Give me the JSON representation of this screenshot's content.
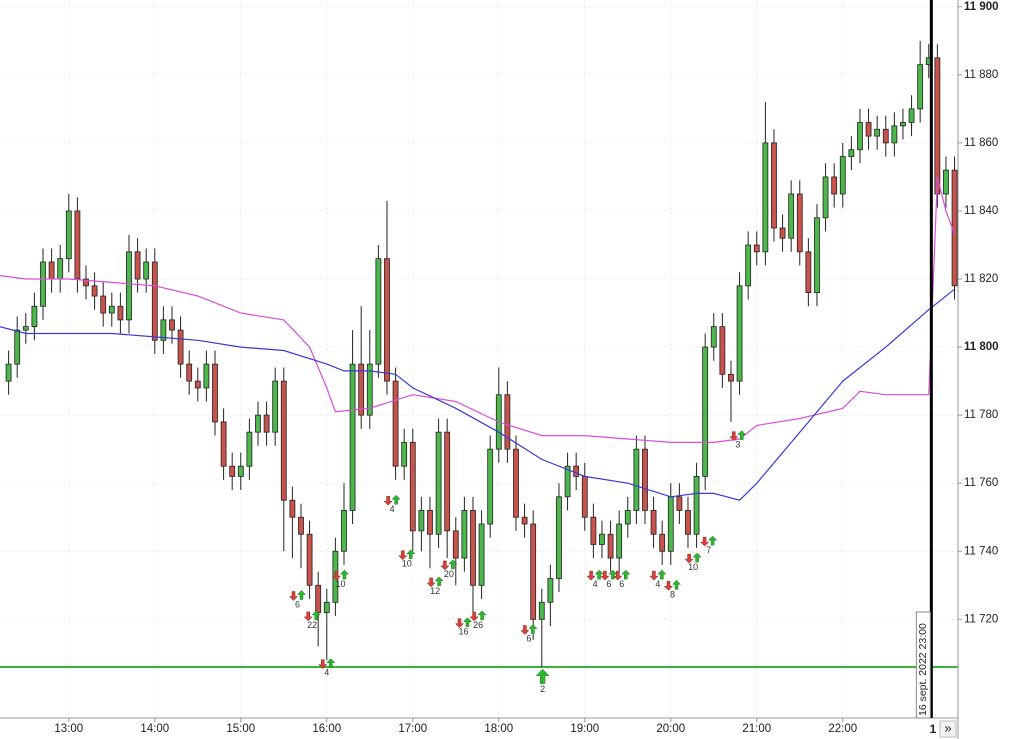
{
  "chart_data": {
    "type": "candlestick",
    "xlim": [
      12.2,
      23.34
    ],
    "ylim": [
      11691,
      11902
    ],
    "xticks": [
      {
        "value": 13,
        "label": "13:00"
      },
      {
        "value": 14,
        "label": "14:00"
      },
      {
        "value": 15,
        "label": "15:00"
      },
      {
        "value": 16,
        "label": "16:00"
      },
      {
        "value": 17,
        "label": "17:00"
      },
      {
        "value": 18,
        "label": "18:00"
      },
      {
        "value": 19,
        "label": "19:00"
      },
      {
        "value": 20,
        "label": "20:00"
      },
      {
        "value": 21,
        "label": "21:00"
      },
      {
        "value": 22,
        "label": "22:00"
      }
    ],
    "yticks": [
      {
        "value": 11720,
        "label": "11 720"
      },
      {
        "value": 11740,
        "label": "11 740"
      },
      {
        "value": 11760,
        "label": "11 760"
      },
      {
        "value": 11780,
        "label": "11 780"
      },
      {
        "value": 11800,
        "label": "11 800"
      },
      {
        "value": 11820,
        "label": "11 820"
      },
      {
        "value": 11840,
        "label": "11 840"
      },
      {
        "value": 11860,
        "label": "11 860"
      },
      {
        "value": 11880,
        "label": "11 880"
      },
      {
        "value": 11900,
        "label": "11 900"
      }
    ],
    "grid": true,
    "up_color": "#4cb84c",
    "down_color": "#c8524c",
    "x": [
      12.3,
      12.4,
      12.5,
      12.6,
      12.7,
      12.8,
      12.9,
      13.0,
      13.1,
      13.2,
      13.3,
      13.4,
      13.5,
      13.6,
      13.7,
      13.8,
      13.9,
      14.0,
      14.1,
      14.2,
      14.3,
      14.4,
      14.5,
      14.6,
      14.7,
      14.8,
      14.9,
      15.0,
      15.1,
      15.2,
      15.3,
      15.4,
      15.5,
      15.6,
      15.7,
      15.8,
      15.9,
      16.0,
      16.1,
      16.2,
      16.3,
      16.4,
      16.5,
      16.6,
      16.7,
      16.8,
      16.9,
      17.0,
      17.1,
      17.2,
      17.3,
      17.4,
      17.5,
      17.6,
      17.7,
      17.8,
      17.9,
      18.0,
      18.1,
      18.2,
      18.3,
      18.4,
      18.5,
      18.6,
      18.7,
      18.8,
      18.9,
      19.0,
      19.1,
      19.2,
      19.3,
      19.4,
      19.5,
      19.6,
      19.7,
      19.8,
      19.9,
      20.0,
      20.1,
      20.2,
      20.3,
      20.4,
      20.5,
      20.6,
      20.7,
      20.8,
      20.9,
      21.0,
      21.1,
      21.2,
      21.3,
      21.4,
      21.5,
      21.6,
      21.7,
      21.8,
      21.9,
      22.0,
      22.1,
      22.2,
      22.3,
      22.4,
      22.5,
      22.6,
      22.7,
      22.8,
      22.9,
      23.0,
      23.1,
      23.2,
      23.3
    ],
    "open": [
      11790,
      11795,
      11805,
      11806,
      11812,
      11825,
      11820,
      11826,
      11840,
      11820,
      11818,
      11815,
      11810,
      11812,
      11808,
      11828,
      11820,
      11825,
      11802,
      11808,
      11805,
      11795,
      11790,
      11788,
      11795,
      11778,
      11765,
      11762,
      11765,
      11775,
      11780,
      11775,
      11790,
      11755,
      11750,
      11745,
      11730,
      11722,
      11725,
      11740,
      11752,
      11795,
      11780,
      11795,
      11826,
      11790,
      11765,
      11772,
      11746,
      11752,
      11745,
      11775,
      11746,
      11738,
      11752,
      11730,
      11748,
      11770,
      11786,
      11770,
      11750,
      11748,
      11720,
      11725,
      11732,
      11756,
      11765,
      11762,
      11750,
      11742,
      11745,
      11738,
      11748,
      11752,
      11770,
      11752,
      11745,
      11740,
      11756,
      11752,
      11745,
      11762,
      11800,
      11806,
      11792,
      11790,
      11818,
      11830,
      11828,
      11860,
      11835,
      11832,
      11845,
      11828,
      11816,
      11838,
      11850,
      11845,
      11856,
      11858,
      11866,
      11862,
      11864,
      11860,
      11865,
      11866,
      11870,
      11883,
      11885,
      11845,
      11852
    ],
    "high": [
      11799,
      11809,
      11810,
      11816,
      11829,
      11829,
      11830,
      11845,
      11844,
      11824,
      11822,
      11819,
      11816,
      11816,
      11833,
      11832,
      11829,
      11829,
      11812,
      11812,
      11809,
      11799,
      11794,
      11799,
      11799,
      11782,
      11769,
      11769,
      11779,
      11784,
      11784,
      11794,
      11794,
      11759,
      11754,
      11749,
      11734,
      11729,
      11744,
      11760,
      11805,
      11812,
      11805,
      11830,
      11843,
      11794,
      11776,
      11776,
      11756,
      11756,
      11779,
      11779,
      11750,
      11756,
      11756,
      11752,
      11774,
      11794,
      11790,
      11774,
      11754,
      11752,
      11729,
      11736,
      11760,
      11769,
      11769,
      11766,
      11754,
      11749,
      11749,
      11752,
      11756,
      11774,
      11774,
      11756,
      11749,
      11760,
      11760,
      11756,
      11766,
      11804,
      11810,
      11810,
      11796,
      11822,
      11834,
      11834,
      11872,
      11864,
      11839,
      11849,
      11849,
      11832,
      11842,
      11854,
      11854,
      11860,
      11862,
      11870,
      11870,
      11868,
      11868,
      11869,
      11870,
      11874,
      11890,
      11889,
      11889,
      11856,
      11856
    ],
    "low": [
      11786,
      11791,
      11801,
      11802,
      11808,
      11816,
      11816,
      11822,
      11816,
      11814,
      11811,
      11806,
      11806,
      11804,
      11804,
      11816,
      11816,
      11798,
      11798,
      11801,
      11791,
      11786,
      11784,
      11784,
      11774,
      11761,
      11758,
      11758,
      11761,
      11771,
      11771,
      11771,
      11740,
      11738,
      11735,
      11726,
      11712,
      11708,
      11721,
      11736,
      11748,
      11776,
      11776,
      11791,
      11786,
      11761,
      11761,
      11740,
      11740,
      11735,
      11741,
      11738,
      11730,
      11734,
      11722,
      11726,
      11744,
      11766,
      11766,
      11746,
      11744,
      11714,
      11706,
      11718,
      11728,
      11752,
      11758,
      11746,
      11738,
      11738,
      11734,
      11734,
      11744,
      11748,
      11748,
      11741,
      11736,
      11736,
      11748,
      11741,
      11741,
      11758,
      11796,
      11788,
      11778,
      11786,
      11814,
      11824,
      11824,
      11831,
      11828,
      11828,
      11824,
      11812,
      11812,
      11834,
      11841,
      11841,
      11852,
      11854,
      11858,
      11858,
      11856,
      11856,
      11861,
      11862,
      11866,
      11879,
      11841,
      11841,
      11814
    ],
    "close": [
      11795,
      11805,
      11806,
      11812,
      11825,
      11820,
      11826,
      11840,
      11820,
      11818,
      11815,
      11810,
      11812,
      11808,
      11828,
      11820,
      11825,
      11802,
      11808,
      11805,
      11795,
      11790,
      11788,
      11795,
      11778,
      11765,
      11762,
      11765,
      11775,
      11780,
      11775,
      11790,
      11755,
      11750,
      11745,
      11730,
      11722,
      11725,
      11740,
      11752,
      11795,
      11780,
      11795,
      11826,
      11790,
      11765,
      11772,
      11746,
      11752,
      11745,
      11775,
      11746,
      11738,
      11752,
      11730,
      11748,
      11770,
      11786,
      11770,
      11750,
      11748,
      11720,
      11725,
      11732,
      11756,
      11765,
      11762,
      11750,
      11742,
      11745,
      11738,
      11748,
      11752,
      11770,
      11752,
      11745,
      11740,
      11756,
      11752,
      11745,
      11762,
      11800,
      11806,
      11792,
      11790,
      11818,
      11830,
      11828,
      11860,
      11835,
      11832,
      11845,
      11828,
      11816,
      11838,
      11850,
      11845,
      11856,
      11858,
      11866,
      11862,
      11864,
      11860,
      11865,
      11866,
      11870,
      11883,
      11885,
      11845,
      11852,
      11818
    ],
    "lines": [
      {
        "color": "#d94fd9",
        "x": [
          12.2,
          12.5,
          13,
          13.5,
          14,
          14.5,
          15,
          15.5,
          15.8,
          16,
          16.1,
          16.5,
          17,
          17.5,
          18,
          18.5,
          19,
          19.5,
          20,
          20.5,
          20.8,
          21,
          21.5,
          22,
          22.2,
          22.5,
          23,
          23.1,
          23.2,
          23.3
        ],
        "values": [
          11821,
          11820,
          11820,
          11819,
          11818,
          11815,
          11810,
          11808,
          11800,
          11788,
          11781,
          11782,
          11786,
          11784,
          11778,
          11774,
          11774,
          11773,
          11772,
          11772,
          11773,
          11777,
          11779,
          11782,
          11787,
          11786,
          11786,
          11850,
          11840,
          11833
        ]
      },
      {
        "color": "#3a3ad9",
        "x": [
          12.2,
          12.5,
          13,
          13.5,
          14,
          14.5,
          15,
          15.5,
          16,
          16.2,
          16.5,
          16.8,
          17,
          17.5,
          18,
          18.5,
          19,
          19.5,
          20,
          20.3,
          20.5,
          20.8,
          21,
          21.5,
          22,
          22.5,
          23,
          23.3
        ],
        "values": [
          11806,
          11804,
          11804,
          11804,
          11803,
          11802,
          11800,
          11799,
          11795,
          11793,
          11793,
          11792,
          11788,
          11782,
          11775,
          11767,
          11762,
          11760,
          11756,
          11757,
          11757,
          11755,
          11760,
          11775,
          11790,
          11800,
          11811,
          11817
        ]
      }
    ],
    "level": 11706,
    "level_color": "#3cb43c",
    "cursor_x": 23.03,
    "cursor_label": "16 sept. 2022 23:00",
    "signals": [
      {
        "x": 15.66,
        "y": 11727,
        "count": 6,
        "arrows": [
          "down",
          "up"
        ]
      },
      {
        "x": 15.83,
        "y": 11721,
        "count": 22,
        "arrows": [
          "down",
          "up"
        ]
      },
      {
        "x": 16.0,
        "y": 11707,
        "count": 4,
        "arrows": [
          "down",
          "up"
        ]
      },
      {
        "x": 16.16,
        "y": 11733,
        "count": 10,
        "arrows": [
          "down",
          "up"
        ]
      },
      {
        "x": 16.76,
        "y": 11755,
        "count": 4,
        "arrows": [
          "down",
          "up"
        ]
      },
      {
        "x": 16.93,
        "y": 11739,
        "count": 10,
        "arrows": [
          "down",
          "up"
        ]
      },
      {
        "x": 17.26,
        "y": 11731,
        "count": 12,
        "arrows": [
          "down",
          "up"
        ]
      },
      {
        "x": 17.42,
        "y": 11736,
        "count": 20,
        "arrows": [
          "down",
          "up"
        ]
      },
      {
        "x": 17.59,
        "y": 11719,
        "count": 16,
        "arrows": [
          "down",
          "up"
        ]
      },
      {
        "x": 17.76,
        "y": 11721,
        "count": 26,
        "arrows": [
          "down",
          "up"
        ]
      },
      {
        "x": 18.35,
        "y": 11717,
        "count": 6,
        "arrows": [
          "down",
          "up"
        ]
      },
      {
        "x": 18.51,
        "y": 11703,
        "count": 2,
        "arrows": [
          "up"
        ]
      },
      {
        "x": 19.12,
        "y": 11733,
        "count": 4,
        "arrows": [
          "down",
          "up"
        ]
      },
      {
        "x": 19.28,
        "y": 11733,
        "count": 6,
        "arrows": [
          "down",
          "up"
        ]
      },
      {
        "x": 19.43,
        "y": 11733,
        "count": 6,
        "arrows": [
          "down",
          "up"
        ]
      },
      {
        "x": 19.85,
        "y": 11733,
        "count": 4,
        "arrows": [
          "down",
          "up"
        ]
      },
      {
        "x": 20.02,
        "y": 11730,
        "count": 8,
        "arrows": [
          "down",
          "up"
        ]
      },
      {
        "x": 20.26,
        "y": 11738,
        "count": 10,
        "arrows": [
          "down",
          "up"
        ]
      },
      {
        "x": 20.44,
        "y": 11743,
        "count": 7,
        "arrows": [
          "down",
          "up"
        ]
      },
      {
        "x": 20.78,
        "y": 11774,
        "count": 3,
        "arrows": [
          "down",
          "up"
        ]
      }
    ],
    "page_label": "1",
    "scroll_button": "»"
  }
}
